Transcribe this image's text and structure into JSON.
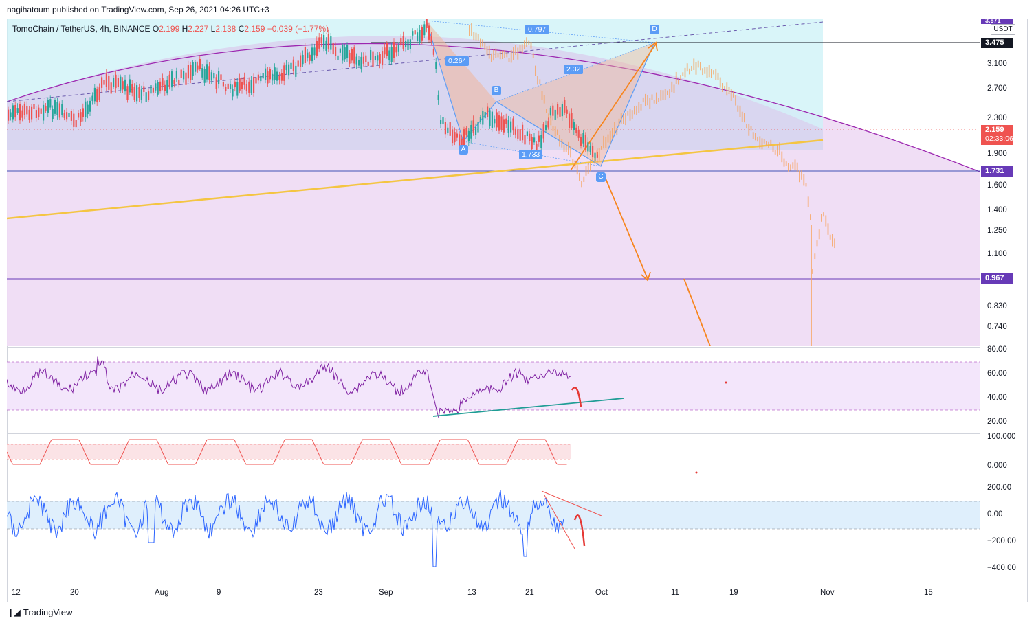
{
  "header": {
    "published": "nagihatoum published on TradingView.com, Sep 26, 2021 04:26 UTC+3"
  },
  "symbol": {
    "name": "TomoChain / TetherUS, 4h, BINANCE",
    "open_label": "O",
    "open": "2.199",
    "high_label": "H",
    "high": "2.227",
    "low_label": "L",
    "low": "2.138",
    "close_label": "C",
    "close": "2.159",
    "change": "−0.039 (−1.77%)"
  },
  "currency": "USDT",
  "price_axis": {
    "ticks": [
      "3.100",
      "2.700",
      "2.300",
      "1.900",
      "1.600",
      "1.400",
      "1.250",
      "1.100",
      "0.830",
      "0.740"
    ],
    "top_badge": "3.571",
    "badges": [
      {
        "label": "3.475",
        "color": "#131722"
      },
      {
        "label": "2.159",
        "sub": "02:33:06",
        "color": "#ef5350"
      },
      {
        "label": "1.731",
        "color": "#673ab7"
      },
      {
        "label": "0.967",
        "color": "#673ab7"
      }
    ]
  },
  "rsi_axis": {
    "ticks": [
      "80.00",
      "60.00",
      "40.00",
      "20.00"
    ]
  },
  "stoch_axis": {
    "ticks": [
      "100.000",
      "0.000"
    ]
  },
  "cci_axis": {
    "ticks": [
      "200.00",
      "0.00",
      "−200.00",
      "−400.00"
    ]
  },
  "time_axis": {
    "ticks": [
      "12",
      "20",
      "Aug",
      "9",
      "23",
      "Sep",
      "13",
      "21",
      "Oct",
      "11",
      "19",
      "Nov",
      "15"
    ]
  },
  "pattern": {
    "points": [
      "A",
      "B",
      "C",
      "D"
    ],
    "ratios": [
      "0.797",
      "0.264",
      "2.32",
      "1.733"
    ]
  },
  "footer": {
    "brand": "TradingView"
  },
  "colors": {
    "up": "#26a69a",
    "down": "#ef5350",
    "projection": "#f7a35c",
    "purple": "#9c27b0",
    "pattern": "#5b9cf6"
  }
}
